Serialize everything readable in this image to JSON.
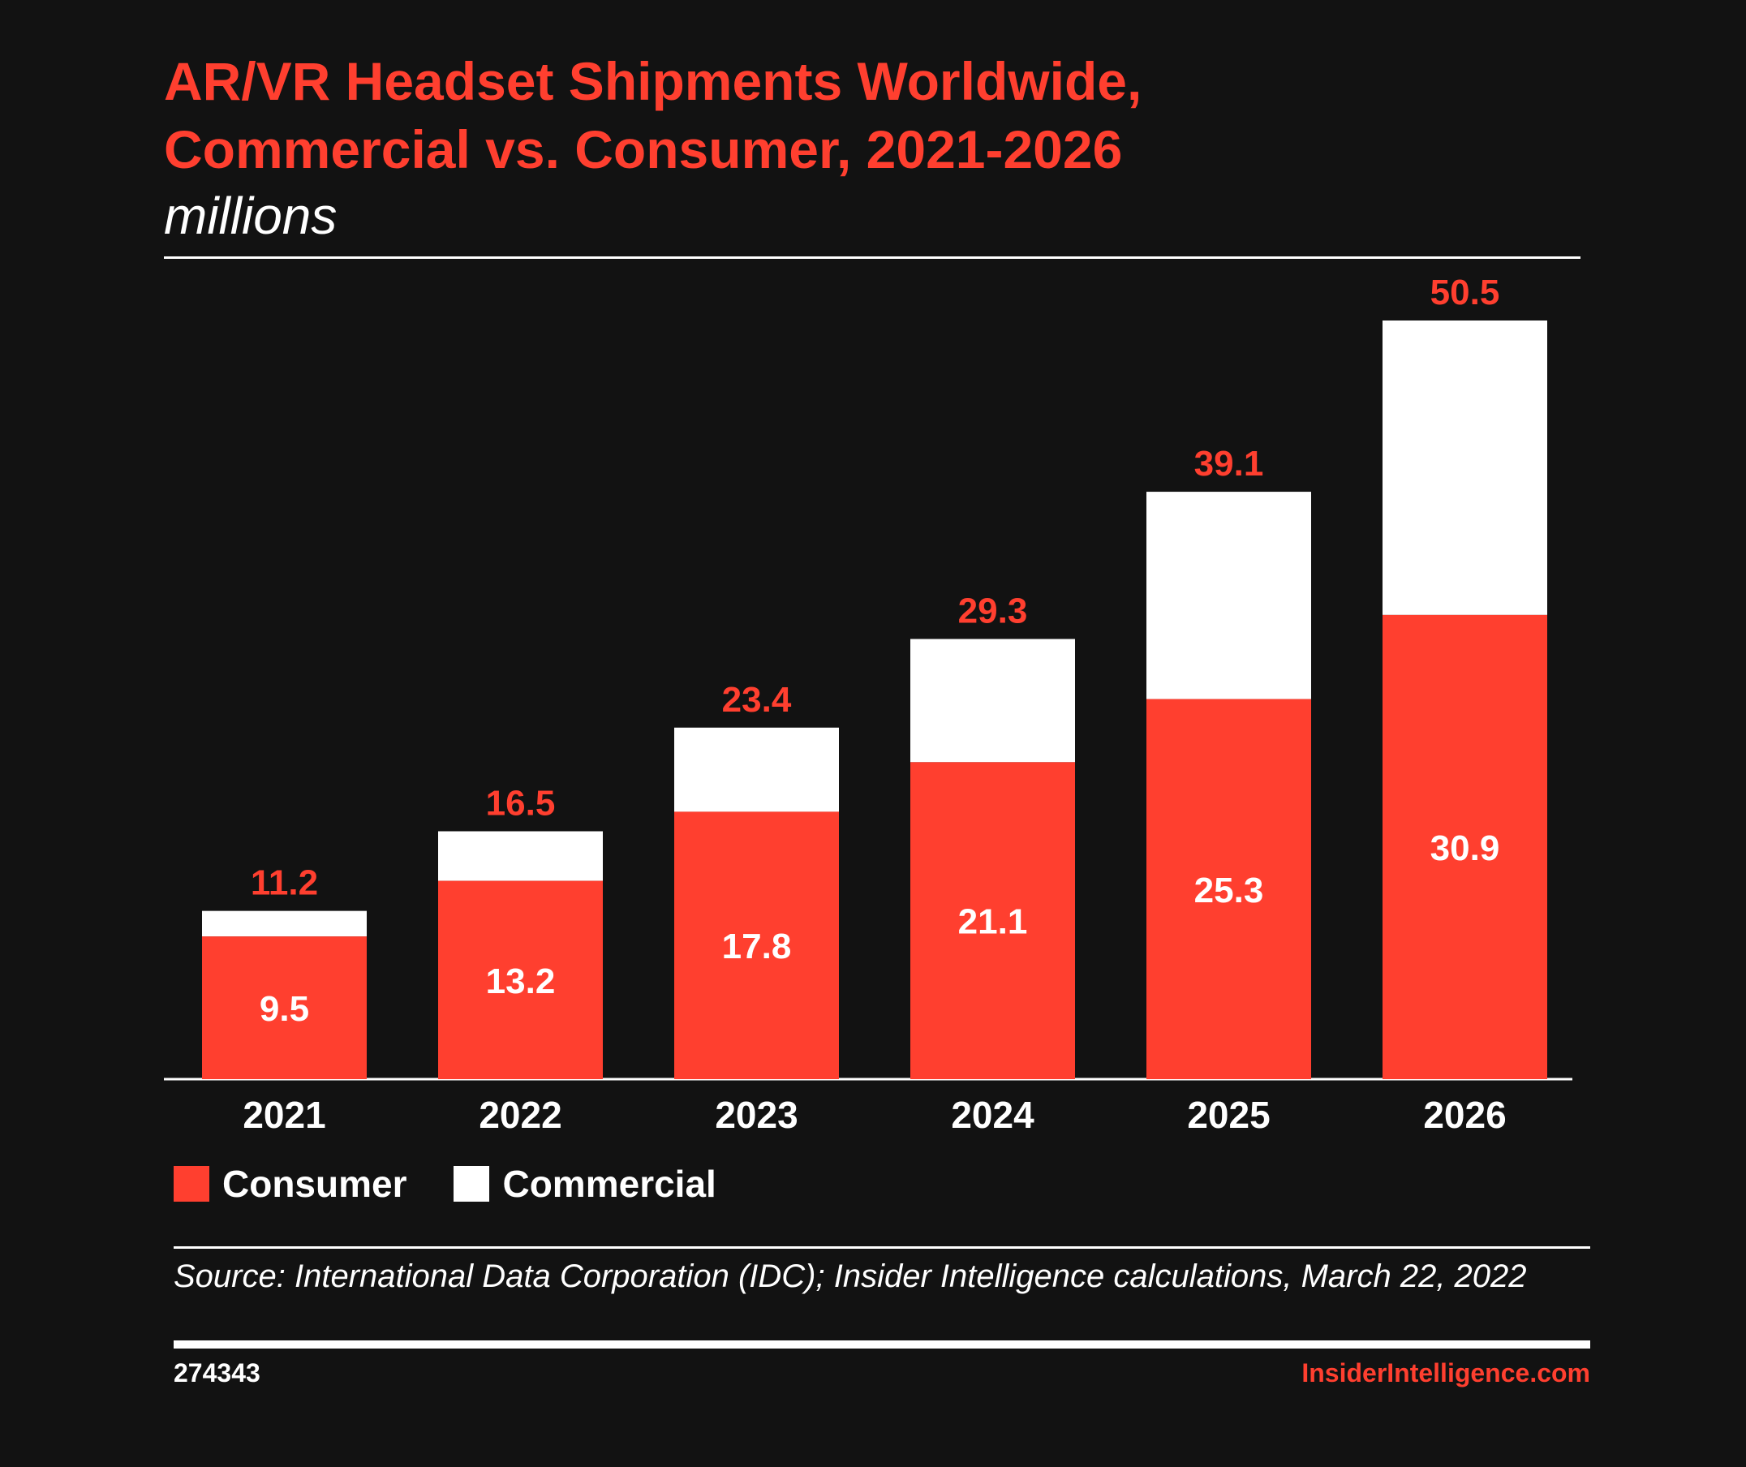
{
  "header": {
    "title_line1": "AR/VR Headset Shipments Worldwide,",
    "title_line2": "Commercial vs. Consumer, 2021-2026",
    "subtitle": "millions"
  },
  "colors": {
    "consumer": "#ff3f2f",
    "commercial": "#ffffff",
    "background": "#121212",
    "total_label": "#ff3f2f"
  },
  "chart_data": {
    "type": "bar",
    "stacked": true,
    "categories": [
      "2021",
      "2022",
      "2023",
      "2024",
      "2025",
      "2026"
    ],
    "series": [
      {
        "name": "Consumer",
        "values": [
          9.5,
          13.2,
          17.8,
          21.1,
          25.3,
          30.9
        ]
      },
      {
        "name": "Commercial",
        "values": [
          1.7,
          3.3,
          5.6,
          8.2,
          13.8,
          19.6
        ]
      }
    ],
    "totals": [
      11.2,
      16.5,
      23.4,
      29.3,
      39.1,
      50.5
    ],
    "consumer_labels": [
      "9.5",
      "13.2",
      "17.8",
      "21.1",
      "25.3",
      "30.9"
    ],
    "total_labels": [
      "11.2",
      "16.5",
      "23.4",
      "29.3",
      "39.1",
      "50.5"
    ],
    "ylim": [
      0,
      50.5
    ],
    "grid": false,
    "legend_position": "bottom-left"
  },
  "legend": {
    "consumer": "Consumer",
    "commercial": "Commercial"
  },
  "footer": {
    "source": "Source: International Data Corporation (IDC); Insider Intelligence calculations, March 22, 2022",
    "chart_id": "274343",
    "brand": "InsiderIntelligence.com"
  }
}
